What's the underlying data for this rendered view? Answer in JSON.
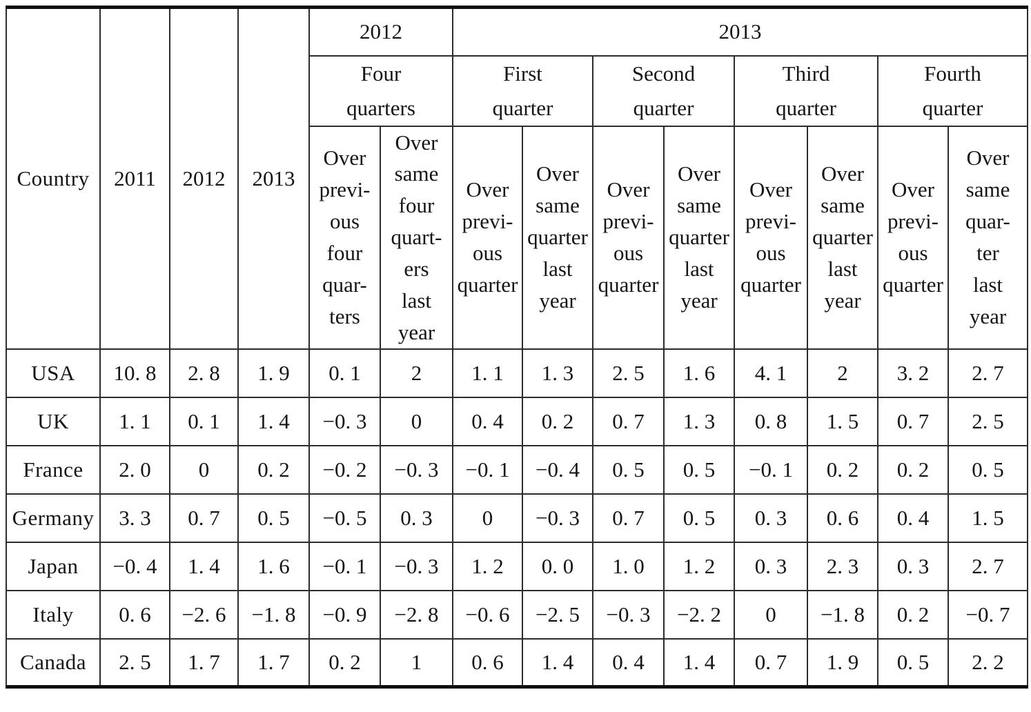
{
  "table": {
    "corner": "Country",
    "year_columns": [
      "2011",
      "2012",
      "2013"
    ],
    "group_2012_label": "2012",
    "group_2013_label": "2013",
    "quarter_groups": [
      "Four\nquarters",
      "First\nquarter",
      "Second\nquarter",
      "Third\nquarter",
      "Fourth\nquarter"
    ],
    "sub_headers": [
      "Over\nprevi-\nous\nfour\nquar-\nters",
      "Over\nsame\nfour\nquart-\ners\nlast\nyear",
      "Over\nprevi-\nous\nquarter",
      "Over\nsame\nquarter\nlast\nyear",
      "Over\nprevi-\nous\nquarter",
      "Over\nsame\nquarter\nlast\nyear",
      "Over\nprevi-\nous\nquarter",
      "Over\nsame\nquarter\nlast\nyear",
      "Over\nprevi-\nous\nquarter",
      "Over\nsame\nquar-\nter\nlast\nyear"
    ],
    "rows": [
      {
        "country": "USA",
        "values": [
          "10. 8",
          "2. 8",
          "1. 9",
          "0. 1",
          "2",
          "1. 1",
          "1. 3",
          "2. 5",
          "1. 6",
          "4. 1",
          "2",
          "3. 2",
          "2. 7"
        ]
      },
      {
        "country": "UK",
        "values": [
          "1. 1",
          "0. 1",
          "1. 4",
          "−0. 3",
          "0",
          "0. 4",
          "0. 2",
          "0. 7",
          "1. 3",
          "0. 8",
          "1. 5",
          "0. 7",
          "2. 5"
        ]
      },
      {
        "country": "France",
        "values": [
          "2. 0",
          "0",
          "0. 2",
          "−0. 2",
          "−0. 3",
          "−0. 1",
          "−0. 4",
          "0. 5",
          "0. 5",
          "−0. 1",
          "0. 2",
          "0. 2",
          "0. 5"
        ]
      },
      {
        "country": "Germany",
        "values": [
          "3. 3",
          "0. 7",
          "0. 5",
          "−0. 5",
          "0. 3",
          "0",
          "−0. 3",
          "0. 7",
          "0. 5",
          "0. 3",
          "0. 6",
          "0. 4",
          "1. 5"
        ]
      },
      {
        "country": "Japan",
        "values": [
          "−0. 4",
          "1. 4",
          "1. 6",
          "−0. 1",
          "−0. 3",
          "1. 2",
          "0. 0",
          "1. 0",
          "1. 2",
          "0. 3",
          "2. 3",
          "0. 3",
          "2. 7"
        ]
      },
      {
        "country": "Italy",
        "values": [
          "0. 6",
          "−2. 6",
          "−1. 8",
          "−0. 9",
          "−2. 8",
          "−0. 6",
          "−2. 5",
          "−0. 3",
          "−2. 2",
          "0",
          "−1. 8",
          "0. 2",
          "−0. 7"
        ]
      },
      {
        "country": "Canada",
        "values": [
          "2. 5",
          "1. 7",
          "1. 7",
          "0. 2",
          "1",
          "0. 6",
          "1. 4",
          "0. 4",
          "1. 4",
          "0. 7",
          "1. 9",
          "0. 5",
          "2. 2"
        ]
      }
    ]
  }
}
